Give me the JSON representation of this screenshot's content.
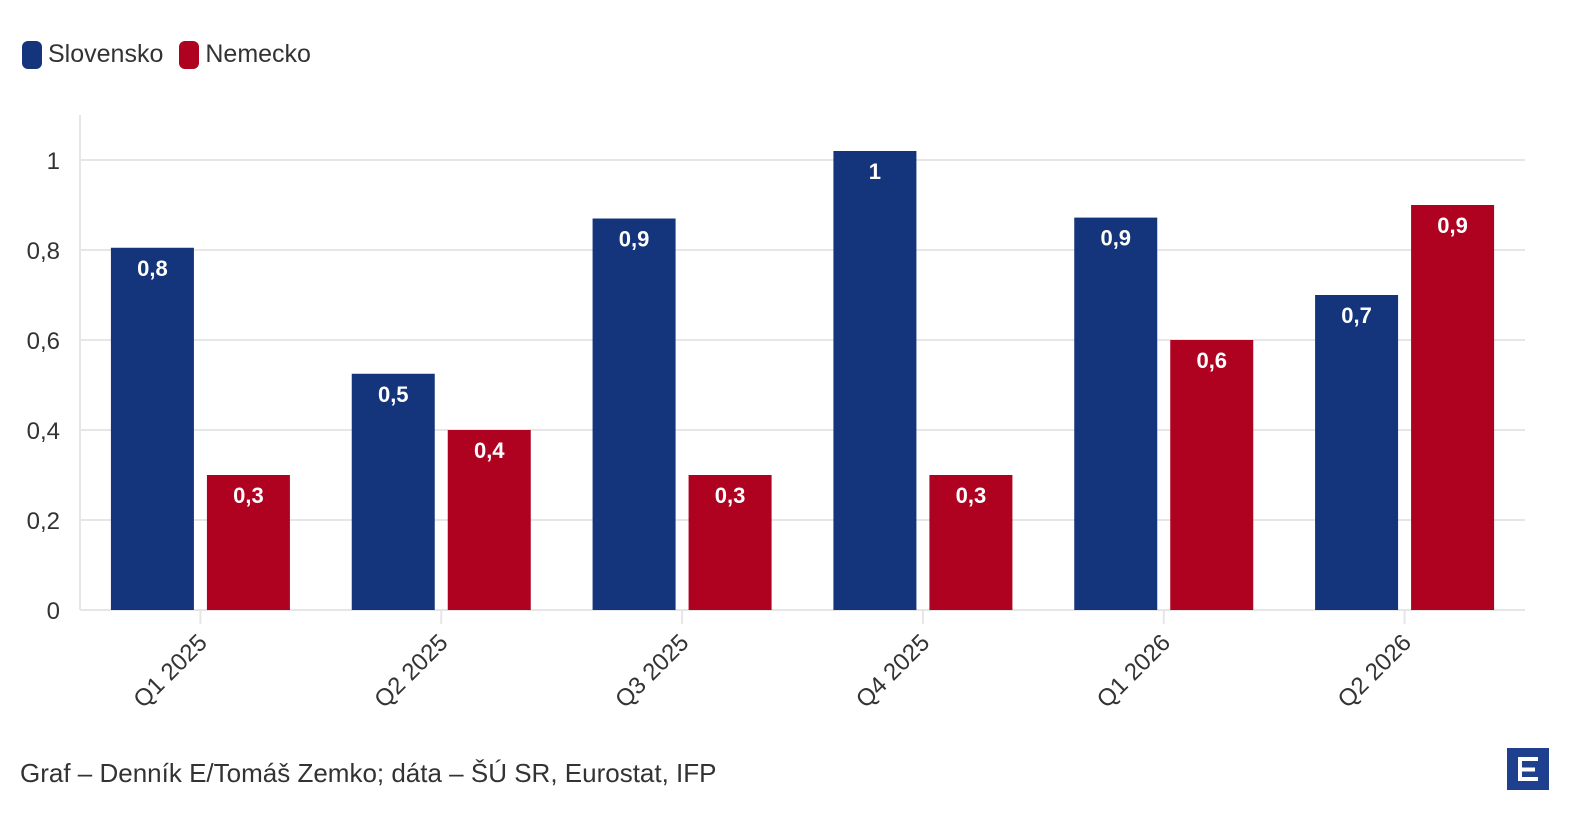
{
  "legend": {
    "series_a_label": "Slovensko",
    "series_b_label": "Nemecko"
  },
  "footer": {
    "source_text": "Graf – Denník E/Tomáš Zemko; dáta – ŠÚ SR, Eurostat, IFP"
  },
  "logo": {
    "icon": "denník-e-logo-icon"
  },
  "colors": {
    "slovensko": "#14347b",
    "nemecko": "#ae0220",
    "grid": "#e6e6e6",
    "axis_text": "#333333",
    "label_text": "#ffffff"
  },
  "chart_data": {
    "type": "bar",
    "categories": [
      "Q1 2025",
      "Q2 2025",
      "Q3 2025",
      "Q4 2025",
      "Q1 2026",
      "Q2 2026"
    ],
    "series": [
      {
        "name": "Slovensko",
        "values": [
          0.805,
          0.525,
          0.87,
          1.02,
          0.872,
          0.7
        ],
        "labels": [
          "0,8",
          "0,5",
          "0,9",
          "1",
          "0,9",
          "0,7"
        ]
      },
      {
        "name": "Nemecko",
        "values": [
          0.3,
          0.4,
          0.3,
          0.3,
          0.6,
          0.9
        ],
        "labels": [
          "0,3",
          "0,4",
          "0,3",
          "0,3",
          "0,6",
          "0,9"
        ]
      }
    ],
    "ylim": [
      0,
      1.1
    ],
    "yticks": [
      0,
      0.2,
      0.4,
      0.6,
      0.8,
      1
    ],
    "ytick_labels": [
      "0",
      "0,2",
      "0,4",
      "0,6",
      "0,8",
      "1"
    ],
    "grid": true,
    "legend_position": "top-left",
    "xlabel": "",
    "ylabel": ""
  }
}
